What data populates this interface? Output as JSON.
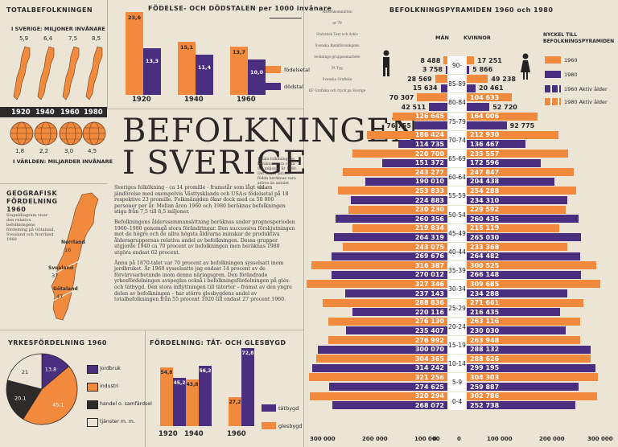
{
  "title": {
    "line1": "BEFOLKNINGEN",
    "line2": "I SVERIGE"
  },
  "total": {
    "heading": "TOTALBEFOLKNINGEN",
    "sweden_label": "I SVERIGE: MILJONER INVÅNARE",
    "sweden_values": [
      "5,9",
      "6,4",
      "7,5",
      "8,5"
    ],
    "years": [
      "1920",
      "1940",
      "1960",
      "1980"
    ],
    "world_values": [
      "1,8",
      "2,2",
      "3,0",
      "4,5"
    ],
    "world_label": "I VÄRLDEN: MILJARDER INVÅNARE"
  },
  "birth": {
    "heading": "FÖDELSE- OCH DÖDSTALEN per 1000 invånare",
    "years": [
      "1920",
      "1940",
      "1960"
    ],
    "birth_values": [
      23.6,
      15.1,
      13.7
    ],
    "death_values": [
      13.3,
      11.4,
      10.0
    ],
    "birth_labels": [
      "23,6",
      "15,1",
      "13,7"
    ],
    "death_labels": [
      "13,3",
      "11,4",
      "10,0"
    ],
    "legend_birth": "födelsetal",
    "legend_death": "dödstal"
  },
  "info_box": [
    "Affischkommittén",
    "nr 79",
    "Statistisk Text och Arkiv",
    "Svenska Bankföreningens",
    "tecknings-gruppsamarbete",
    "Pt Tyg",
    "Svenska Grafiska",
    "KF Grafiska och tryck pa Sverige"
  ],
  "geo": {
    "heading": "GEOGRAFISK FÖRDELNING 1960",
    "note": "Stapeldiagram visar den relativa befolkningens fördelning på Götaland, Svealand och Norrland 1960",
    "regions": [
      {
        "name": "Norrland",
        "pct": "16"
      },
      {
        "name": "Svealand",
        "pct": "37"
      },
      {
        "name": "Götaland",
        "pct": "47"
      }
    ]
  },
  "intro_note": "Totala folkmängden beräknas vara cirka 8,5 miljoner år 1980. Det totala antalet födda beräknas vara större än antalet döda.",
  "body": [
    "Sveriges folkökning - ca 14 promille - framstår som lågt vid en jämförelse med exempelvis Västtysklands och USA:s födelsetal på 18 respektive 23 promille. Folkmängden ökar dock med ca 50 000 personer per år. Mellan åren 1960 och 1980 beräknas befolkningen stiga från 7,5 till 8,5 miljoner.",
    "Befolkningens ålderssammansättning beräknas under prognosperioden 1960–1980 genomgå stora förändringar. Den successiva förskjutningen mot de högre och de allra högsta åldrarna minskar de produktiva åldersgruppernas relativa andel av befolkningen. Dessa grupper utgjorde 1940 ca 70 procent av befolkningen men beräknas 1980 utgöra endast 62 procent.",
    "Ännu på 1870-talet var 70 procent av befolkningen sysselsatt inom jordbruket. År 1960 sysselsatte jag endast 14 procent av de förvärvsarbetande inom denna näringsgren. Den förändrade yrkesfördelningen avspeglas också i befolkningsfördelningen på glés- och tätbygd. Den stora inflyttningen till tätorter – främst av den yngre delen av befolkningen – har större glesbygdens andel av totalbefolkningen från 55 procent 1920 till endast 27 procent 1960."
  ],
  "occupation": {
    "heading": "YRKESFÖRDELNING 1960",
    "slices": [
      {
        "label": "jordbruk",
        "pct": "13,8",
        "color": "#4a2f80",
        "value": 13.8
      },
      {
        "label": "industri",
        "pct": "45,1",
        "color": "#f28a3d",
        "value": 45.1
      },
      {
        "label": "handel o. samfärdsel",
        "pct": "20,1",
        "color": "#2d2a2a",
        "value": 20.1
      },
      {
        "label": "tjänster m. m.",
        "pct": "21",
        "color": "#ece4d4",
        "value": 21.0
      }
    ]
  },
  "urban": {
    "heading": "FÖRDELNING: TÄT- OCH GLESBYGD",
    "years": [
      "1920",
      "1940",
      "1960"
    ],
    "dense": [
      45.2,
      56.2,
      72.8
    ],
    "sparse": [
      54.8,
      43.8,
      27.2
    ],
    "dense_labels": [
      "45,2",
      "56,2",
      "72,8"
    ],
    "sparse_labels": [
      "54,8",
      "43,8",
      "27,2"
    ],
    "legend_dense": "tätbygd",
    "legend_sparse": "glesbygd"
  },
  "pyramid": {
    "heading": "BEFOLKNINGSPYRAMIDEN 1960 och 1980",
    "men": "MÄN",
    "women": "KVINNOR",
    "legend_title": "NYCKEL TILL BEFOLKNINGSPYRAMIDEN",
    "legend": [
      "1960",
      "1980",
      "1960 Aktiv ålder",
      "1980 Aktiv ålder"
    ],
    "axis": [
      "300 000",
      "200 000",
      "100 000",
      "0",
      "0",
      "100 000",
      "200 000",
      "300 000"
    ],
    "groups": [
      {
        "age": "90-",
        "rows": [
          {
            "m": "8 488",
            "w": "17 251",
            "mv": 8488,
            "wv": 17251,
            "c": "o"
          },
          {
            "m": "3 758",
            "w": "5 866",
            "mv": 3758,
            "wv": 5866,
            "c": "p"
          }
        ]
      },
      {
        "age": "85-89",
        "rows": [
          {
            "m": "28 569",
            "w": "49 238",
            "mv": 28569,
            "wv": 49238,
            "c": "o"
          },
          {
            "m": "15 634",
            "w": "20 461",
            "mv": 15634,
            "wv": 20461,
            "c": "p"
          }
        ]
      },
      {
        "age": "80-84",
        "rows": [
          {
            "m": "70 307",
            "w": "104 633",
            "mv": 70307,
            "wv": 104633,
            "c": "o"
          },
          {
            "m": "42 511",
            "w": "52 720",
            "mv": 42511,
            "wv": 52720,
            "c": "p"
          }
        ]
      },
      {
        "age": "75-79",
        "rows": [
          {
            "m": "126 645",
            "w": "164 006",
            "mv": 126645,
            "wv": 164006,
            "c": "o"
          },
          {
            "m": "76 755",
            "w": "92 775",
            "mv": 76755,
            "wv": 92775,
            "c": "p"
          }
        ]
      },
      {
        "age": "70-74",
        "rows": [
          {
            "m": "186 424",
            "w": "212 930",
            "mv": 186424,
            "wv": 212930,
            "c": "o"
          },
          {
            "m": "114 735",
            "w": "136 467",
            "mv": 114735,
            "wv": 136467,
            "c": "p"
          }
        ]
      },
      {
        "age": "65-69",
        "rows": [
          {
            "m": "220 700",
            "w": "235 557",
            "mv": 220700,
            "wv": 235557,
            "c": "o"
          },
          {
            "m": "151 372",
            "w": "172 596",
            "mv": 151372,
            "wv": 172596,
            "c": "p"
          }
        ]
      },
      {
        "age": "60-64",
        "rows": [
          {
            "m": "243 277",
            "w": "247 847",
            "mv": 243277,
            "wv": 247847,
            "c": "o"
          },
          {
            "m": "190 010",
            "w": "204 438",
            "mv": 190010,
            "wv": 204438,
            "c": "p"
          }
        ]
      },
      {
        "age": "55-59",
        "rows": [
          {
            "m": "253 833",
            "w": "254 288",
            "mv": 253833,
            "wv": 254288,
            "c": "o"
          },
          {
            "m": "224 883",
            "w": "234 310",
            "mv": 224883,
            "wv": 234310,
            "c": "p"
          }
        ]
      },
      {
        "age": "50-54",
        "rows": [
          {
            "m": "230 230",
            "w": "229 592",
            "mv": 230230,
            "wv": 229592,
            "c": "o"
          },
          {
            "m": "260 356",
            "w": "260 435",
            "mv": 260356,
            "wv": 260435,
            "c": "p"
          }
        ]
      },
      {
        "age": "45-49",
        "rows": [
          {
            "m": "219 834",
            "w": "215 119",
            "mv": 219834,
            "wv": 215119,
            "c": "o"
          },
          {
            "m": "264 319",
            "w": "265 030",
            "mv": 264319,
            "wv": 265030,
            "c": "p"
          }
        ]
      },
      {
        "age": "40-44",
        "rows": [
          {
            "m": "243 075",
            "w": "233 368",
            "mv": 243075,
            "wv": 233368,
            "c": "o"
          },
          {
            "m": "269 676",
            "w": "264 482",
            "mv": 269676,
            "wv": 264482,
            "c": "p"
          }
        ]
      },
      {
        "age": "35-39",
        "rows": [
          {
            "m": "316 387",
            "w": "300 525",
            "mv": 316387,
            "wv": 300525,
            "c": "o"
          },
          {
            "m": "270 012",
            "w": "266 148",
            "mv": 270012,
            "wv": 266148,
            "c": "p"
          }
        ]
      },
      {
        "age": "30-34",
        "rows": [
          {
            "m": "327 346",
            "w": "309 685",
            "mv": 327346,
            "wv": 309685,
            "c": "o"
          },
          {
            "m": "237 143",
            "w": "234 288",
            "mv": 237143,
            "wv": 234288,
            "c": "p"
          }
        ]
      },
      {
        "age": "25-29",
        "rows": [
          {
            "m": "288 836",
            "w": "271 661",
            "mv": 288836,
            "wv": 271661,
            "c": "o"
          },
          {
            "m": "220 116",
            "w": "216 435",
            "mv": 220116,
            "wv": 216435,
            "c": "p"
          }
        ]
      },
      {
        "age": "20-24",
        "rows": [
          {
            "m": "276 130",
            "w": "263 116",
            "mv": 276130,
            "wv": 263116,
            "c": "o"
          },
          {
            "m": "235 407",
            "w": "230 030",
            "mv": 235407,
            "wv": 230030,
            "c": "p"
          }
        ]
      },
      {
        "age": "15-19",
        "rows": [
          {
            "m": "276 992",
            "w": "263 948",
            "mv": 276992,
            "wv": 263948,
            "c": "o"
          },
          {
            "m": "300 070",
            "w": "288 132",
            "mv": 300070,
            "wv": 288132,
            "c": "p"
          }
        ]
      },
      {
        "age": "10-14",
        "rows": [
          {
            "m": "304 365",
            "w": "288 626",
            "mv": 304365,
            "wv": 288626,
            "c": "o"
          },
          {
            "m": "314 242",
            "w": "299 195",
            "mv": 314242,
            "wv": 299195,
            "c": "p"
          }
        ]
      },
      {
        "age": "5-9",
        "rows": [
          {
            "m": "321 256",
            "w": "304 303",
            "mv": 321256,
            "wv": 304303,
            "c": "o"
          },
          {
            "m": "274 625",
            "w": "259 887",
            "mv": 274625,
            "wv": 259887,
            "c": "p"
          }
        ]
      },
      {
        "age": "0-4",
        "rows": [
          {
            "m": "320 294",
            "w": "302 786",
            "mv": 320294,
            "wv": 302786,
            "c": "o"
          },
          {
            "m": "268 072",
            "w": "252 738",
            "mv": 268072,
            "wv": 252738,
            "c": "p"
          }
        ]
      }
    ]
  }
}
